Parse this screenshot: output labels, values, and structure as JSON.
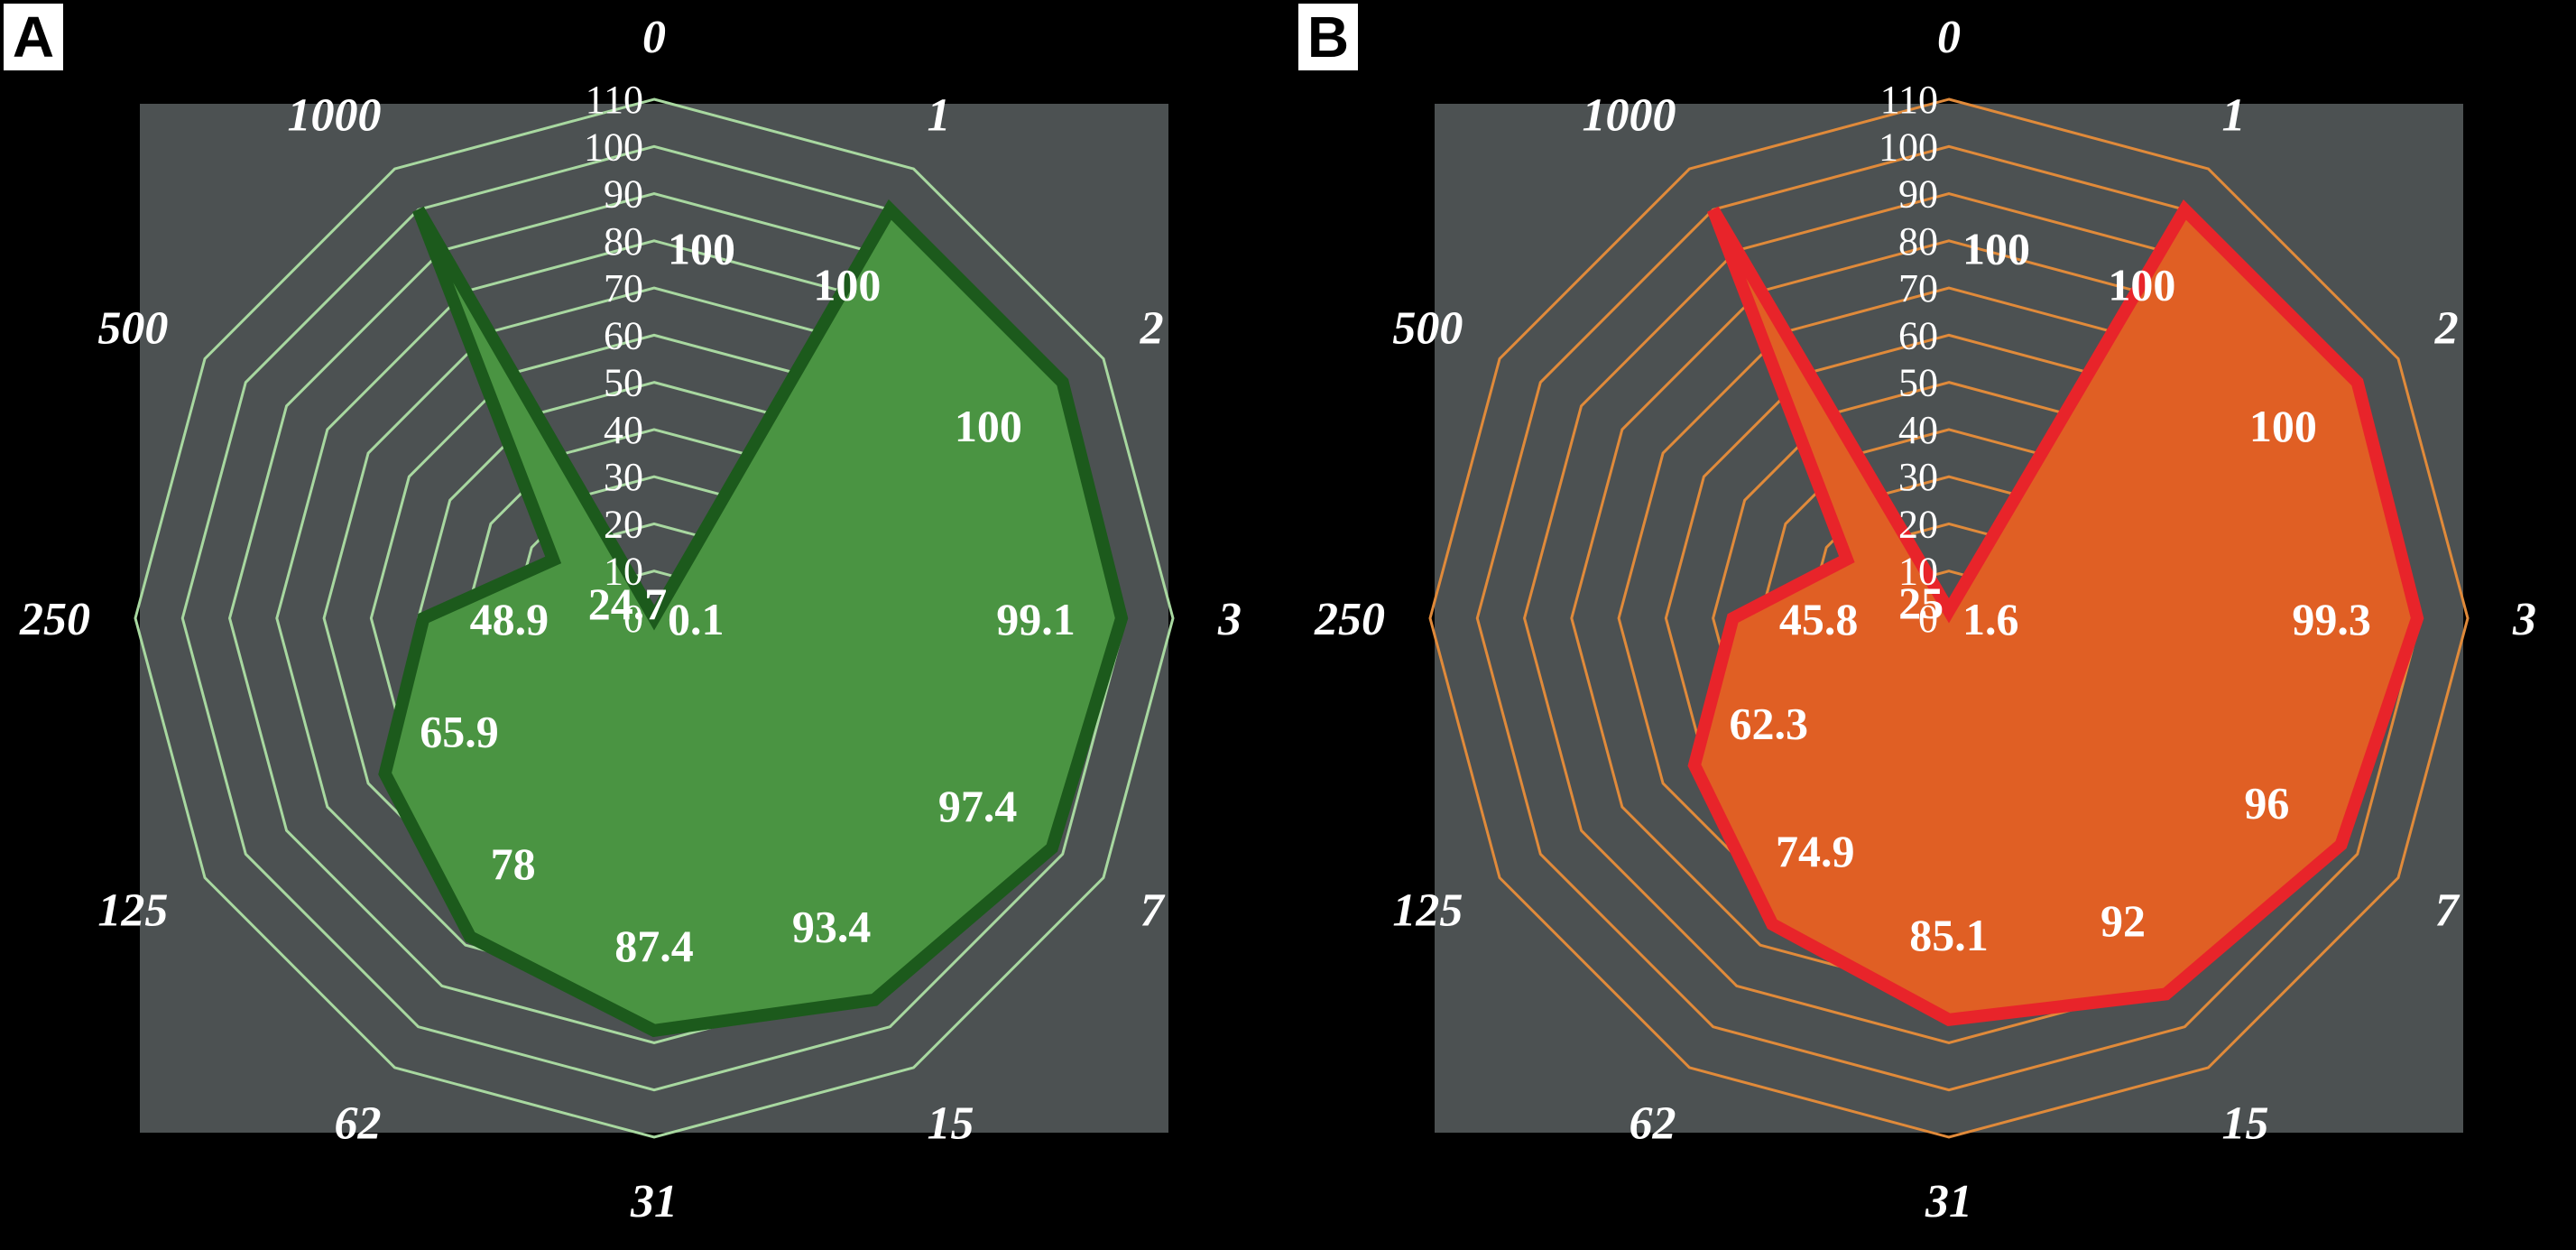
{
  "chart_data": [
    {
      "panel_label": "A",
      "type": "radar",
      "categories": [
        "0",
        "1",
        "2",
        "3",
        "7",
        "15",
        "31",
        "62",
        "125",
        "250",
        "500",
        "1000"
      ],
      "values": [
        0.1,
        100,
        100,
        99.1,
        97.4,
        93.4,
        87.4,
        78,
        65.9,
        48.9,
        24.7,
        100
      ],
      "value_labels": [
        "0.1",
        "100",
        "100",
        "99.1",
        "97.4",
        "93.4",
        "87.4",
        "78",
        "65.9",
        "48.9",
        "24.7",
        "100"
      ],
      "radial_range": [
        0,
        110
      ],
      "radial_ticks": [
        "0",
        "10",
        "20",
        "30",
        "40",
        "50",
        "60",
        "70",
        "80",
        "90",
        "100",
        "110"
      ],
      "grid": true,
      "colors": {
        "fill": "#4a9442",
        "stroke": "#1c5a1c",
        "grid": "#a8d8a0",
        "background": "#4c5152"
      }
    },
    {
      "panel_label": "B",
      "type": "radar",
      "categories": [
        "0",
        "1",
        "2",
        "3",
        "7",
        "15",
        "31",
        "62",
        "125",
        "250",
        "500",
        "1000"
      ],
      "values": [
        1.6,
        100,
        100,
        99.3,
        96,
        92,
        85.1,
        74.9,
        62.3,
        45.8,
        25,
        100
      ],
      "value_labels": [
        "1.6",
        "100",
        "100",
        "99.3",
        "96",
        "92",
        "85.1",
        "74.9",
        "62.3",
        "45.8",
        "25",
        "100"
      ],
      "radial_range": [
        0,
        110
      ],
      "radial_ticks": [
        "0",
        "10",
        "20",
        "30",
        "40",
        "50",
        "60",
        "70",
        "80",
        "90",
        "100",
        "110"
      ],
      "grid": true,
      "colors": {
        "fill": "#e05f24",
        "stroke": "#e8242a",
        "grid": "#e08a3a",
        "background": "#4c5152"
      }
    }
  ]
}
